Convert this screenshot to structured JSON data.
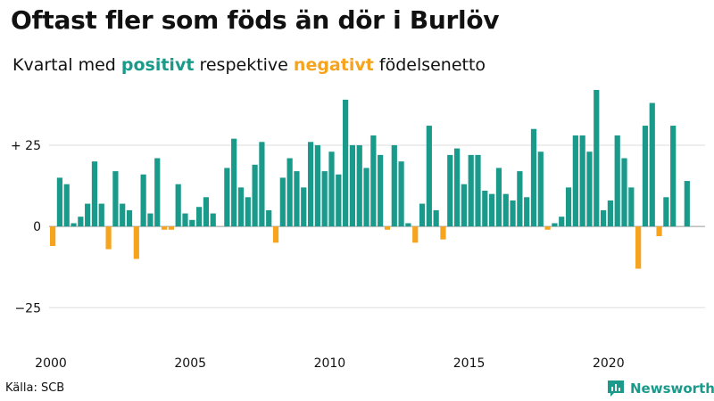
{
  "title": "Oftast fler som föds än dör i Burlöv",
  "subtitle": {
    "prefix": "Kvartal med",
    "positive_word": "positivt",
    "middle": "respektive",
    "negative_word": "negativt",
    "suffix": "födelsenetto"
  },
  "source": "Källa: SCB",
  "brand": "Newsworthy",
  "colors": {
    "positive": "#1a9a8a",
    "negative": "#f6a31e",
    "grid": "#dddddd",
    "zero": "#999999"
  },
  "chart_data": {
    "type": "bar",
    "title": "Oftast fler som föds än dör i Burlöv",
    "xlabel": "",
    "ylabel": "",
    "ylim": [
      -40,
      45
    ],
    "y_ticks": [
      {
        "value": 25,
        "label": "+ 25"
      },
      {
        "value": 0,
        "label": "0"
      },
      {
        "value": -25,
        "label": "−25"
      }
    ],
    "x_ticks": [
      {
        "year": 2000,
        "label": "2000"
      },
      {
        "year": 2005,
        "label": "2005"
      },
      {
        "year": 2010,
        "label": "2010"
      },
      {
        "year": 2015,
        "label": "2015"
      },
      {
        "year": 2020,
        "label": "2020"
      }
    ],
    "start_year": 2000,
    "grid": true,
    "series": [
      {
        "values": [
          -6,
          15,
          13,
          1,
          3,
          7,
          20,
          7,
          -7,
          17,
          7,
          5,
          -10,
          16,
          4,
          21,
          -1,
          -1,
          13,
          4,
          2,
          6,
          9,
          4,
          0,
          18,
          27,
          12,
          9,
          19,
          26,
          5,
          -5,
          15,
          21,
          17,
          12,
          26,
          25,
          17,
          23,
          16,
          39,
          25,
          25,
          18,
          28,
          22,
          -1,
          25,
          20,
          1,
          -5,
          7,
          31,
          5,
          -4,
          22,
          24,
          13,
          22,
          22,
          11,
          10,
          18,
          10,
          8,
          17,
          9,
          30,
          23,
          -1,
          1,
          3,
          12,
          28,
          28,
          23,
          42,
          5,
          8,
          28,
          21,
          12,
          -13,
          31,
          38,
          -3,
          9,
          31,
          0,
          14
        ]
      }
    ]
  }
}
